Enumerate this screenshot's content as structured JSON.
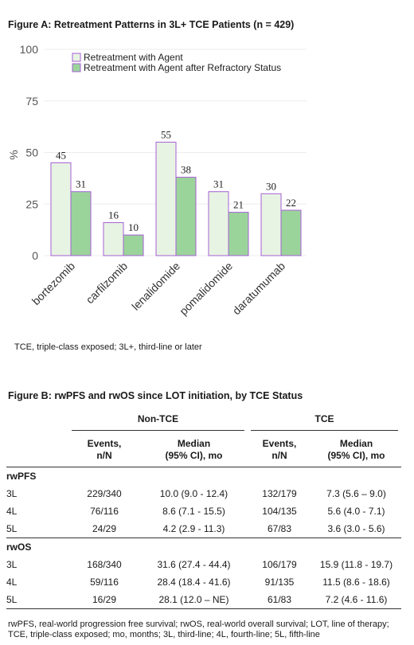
{
  "figure_a": {
    "title": "Figure A:  Retreatment Patterns in 3L+ TCE Patients (n = 429)",
    "footnote": "TCE, triple-class exposed; 3L+, third-line or later"
  },
  "chart_data": {
    "type": "bar",
    "categories": [
      "bortezomib",
      "carfilzomib",
      "lenalidomide",
      "pomalidomide",
      "daratumumab"
    ],
    "series": [
      {
        "name": "Retreatment with Agent",
        "values": [
          45,
          16,
          55,
          31,
          30
        ],
        "fill": "#e8f4e3",
        "stroke": "#a65fd6"
      },
      {
        "name": "Retreatment with Agent after Refractory Status",
        "values": [
          31,
          10,
          38,
          21,
          22
        ],
        "fill": "#9bd49b",
        "stroke": "#a65fd6"
      }
    ],
    "xlabel": "",
    "ylabel": "%",
    "ylim": [
      0,
      100
    ],
    "yticks": [
      0,
      25,
      50,
      75,
      100
    ],
    "grid": true,
    "legend": "top-left",
    "gridline_color": "#ececec"
  },
  "figure_b": {
    "title": "Figure B: rwPFS and rwOS since LOT initiation, by TCE Status",
    "groups": [
      "Non-TCE",
      "TCE"
    ],
    "col_events_1": "Events,",
    "col_events_2": "n/N",
    "col_median_1": "Median",
    "col_median_2": "(95% CI), mo",
    "sections": [
      {
        "name": "rwPFS",
        "rows": [
          {
            "line": "3L",
            "nontce_events": "229/340",
            "nontce_median": "10.0 (9.0 - 12.4)",
            "tce_events": "132/179",
            "tce_median": "7.3 (5.6 – 9.0)"
          },
          {
            "line": "4L",
            "nontce_events": "76/116",
            "nontce_median": "8.6 (7.1 - 15.5)",
            "tce_events": "104/135",
            "tce_median": "5.6 (4.0 - 7.1)"
          },
          {
            "line": "5L",
            "nontce_events": "24/29",
            "nontce_median": "4.2 (2.9 - 11.3)",
            "tce_events": "67/83",
            "tce_median": "3.6 (3.0 - 5.6)"
          }
        ]
      },
      {
        "name": "rwOS",
        "rows": [
          {
            "line": "3L",
            "nontce_events": "168/340",
            "nontce_median": "31.6 (27.4 - 44.4)",
            "tce_events": "106/179",
            "tce_median": "15.9 (11.8 - 19.7)"
          },
          {
            "line": "4L",
            "nontce_events": "59/116",
            "nontce_median": "28.4 (18.4 - 41.6)",
            "tce_events": "91/135",
            "tce_median": "11.5 (8.6 - 18.6)"
          },
          {
            "line": "5L",
            "nontce_events": "16/29",
            "nontce_median": "28.1 (12.0 – NE)",
            "tce_events": "61/83",
            "tce_median": "7.2 (4.6 - 11.6)"
          }
        ]
      }
    ],
    "footnote": "rwPFS, real-world progression free survival; rwOS, real-world overall survival; LOT, line of therapy; TCE, triple-class exposed; mo, months; 3L, third-line; 4L, fourth-line; 5L, fifth-line"
  }
}
